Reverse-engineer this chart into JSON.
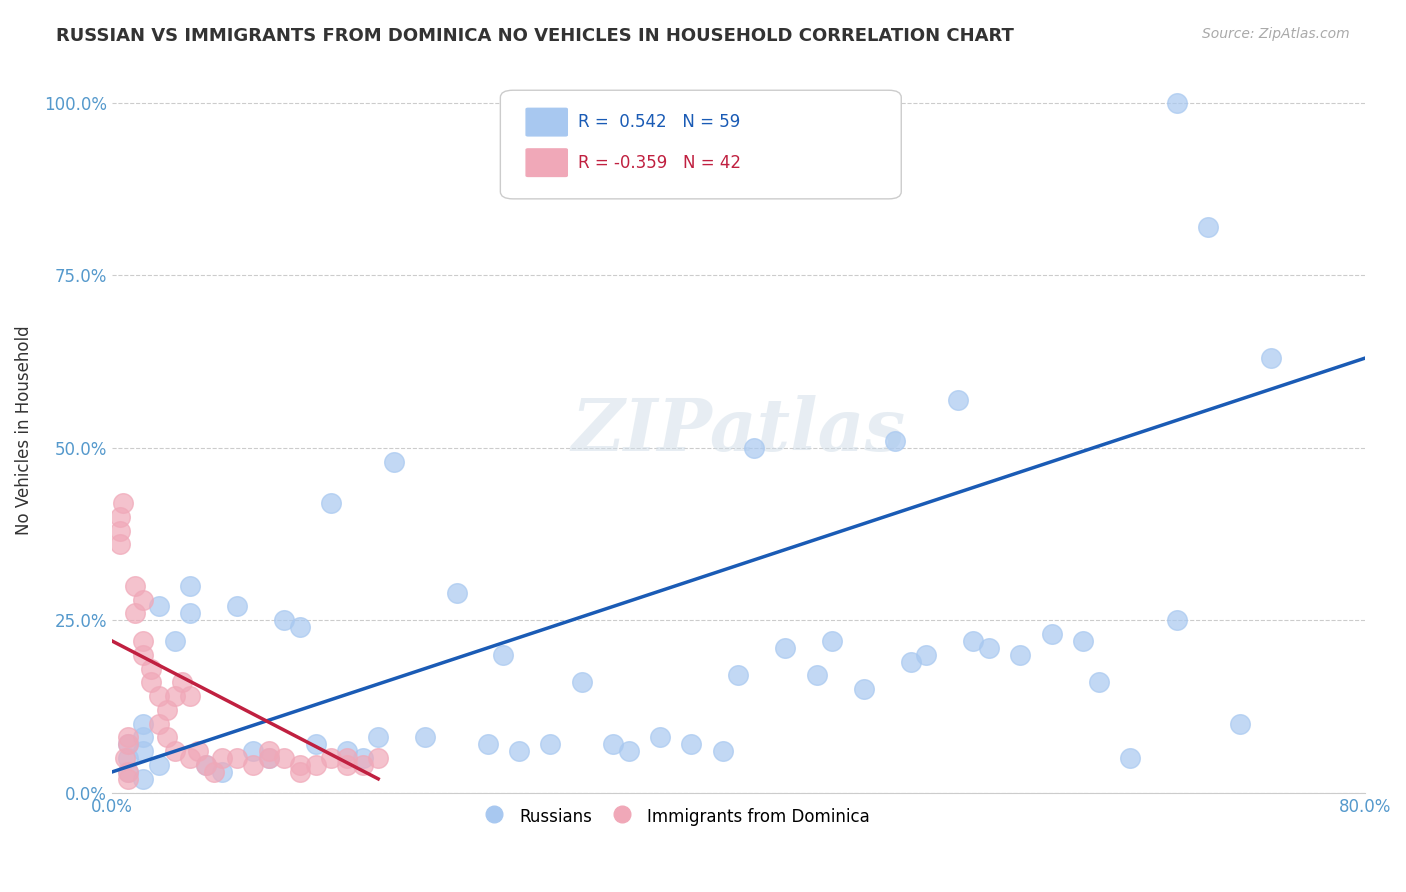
{
  "title": "RUSSIAN VS IMMIGRANTS FROM DOMINICA NO VEHICLES IN HOUSEHOLD CORRELATION CHART",
  "source": "Source: ZipAtlas.com",
  "ylabel": "No Vehicles in Household",
  "xlabel": "",
  "watermark": "ZIPatlas",
  "xlim": [
    0.0,
    0.8
  ],
  "ylim": [
    0.0,
    1.05
  ],
  "xticks": [
    0.0,
    0.1,
    0.2,
    0.3,
    0.4,
    0.5,
    0.6,
    0.7,
    0.8
  ],
  "xticklabels": [
    "0.0%",
    "",
    "",
    "",
    "",
    "",
    "",
    "",
    "80.0%"
  ],
  "yticks": [
    0.0,
    0.25,
    0.5,
    0.75,
    1.0
  ],
  "yticklabels": [
    "0.0%",
    "25.0%",
    "50.0%",
    "75.0%",
    "100.0%"
  ],
  "blue_R": 0.542,
  "blue_N": 59,
  "pink_R": -0.359,
  "pink_N": 42,
  "legend_labels": [
    "Russians",
    "Immigrants from Dominica"
  ],
  "blue_color": "#a8c8f0",
  "pink_color": "#f0a8b8",
  "blue_line_color": "#1a5bb5",
  "pink_line_color": "#c02040",
  "grid_color": "#cccccc",
  "title_color": "#333333",
  "axis_color": "#5599cc",
  "blue_scatter_x": [
    0.02,
    0.03,
    0.02,
    0.01,
    0.01,
    0.01,
    0.02,
    0.02,
    0.03,
    0.04,
    0.05,
    0.06,
    0.07,
    0.05,
    0.08,
    0.09,
    0.1,
    0.11,
    0.12,
    0.13,
    0.14,
    0.15,
    0.16,
    0.17,
    0.18,
    0.2,
    0.22,
    0.24,
    0.25,
    0.26,
    0.28,
    0.3,
    0.32,
    0.33,
    0.35,
    0.37,
    0.39,
    0.4,
    0.41,
    0.43,
    0.45,
    0.46,
    0.48,
    0.5,
    0.51,
    0.52,
    0.54,
    0.55,
    0.56,
    0.58,
    0.6,
    0.62,
    0.63,
    0.65,
    0.68,
    0.7,
    0.72,
    0.68,
    0.74
  ],
  "blue_scatter_y": [
    0.06,
    0.04,
    0.02,
    0.03,
    0.05,
    0.07,
    0.08,
    0.1,
    0.27,
    0.22,
    0.26,
    0.04,
    0.03,
    0.3,
    0.27,
    0.06,
    0.05,
    0.25,
    0.24,
    0.07,
    0.42,
    0.06,
    0.05,
    0.08,
    0.48,
    0.08,
    0.29,
    0.07,
    0.2,
    0.06,
    0.07,
    0.16,
    0.07,
    0.06,
    0.08,
    0.07,
    0.06,
    0.17,
    0.5,
    0.21,
    0.17,
    0.22,
    0.15,
    0.51,
    0.19,
    0.2,
    0.57,
    0.22,
    0.21,
    0.2,
    0.23,
    0.22,
    0.16,
    0.05,
    0.25,
    0.82,
    0.1,
    1.0,
    0.63
  ],
  "pink_scatter_x": [
    0.005,
    0.005,
    0.005,
    0.007,
    0.008,
    0.01,
    0.01,
    0.01,
    0.01,
    0.015,
    0.015,
    0.02,
    0.02,
    0.02,
    0.025,
    0.025,
    0.03,
    0.03,
    0.035,
    0.035,
    0.04,
    0.04,
    0.045,
    0.05,
    0.05,
    0.055,
    0.06,
    0.065,
    0.07,
    0.08,
    0.09,
    0.1,
    0.1,
    0.11,
    0.12,
    0.12,
    0.13,
    0.14,
    0.15,
    0.15,
    0.16,
    0.17
  ],
  "pink_scatter_y": [
    0.4,
    0.38,
    0.36,
    0.42,
    0.05,
    0.03,
    0.02,
    0.08,
    0.07,
    0.3,
    0.26,
    0.28,
    0.22,
    0.2,
    0.18,
    0.16,
    0.14,
    0.1,
    0.08,
    0.12,
    0.14,
    0.06,
    0.16,
    0.14,
    0.05,
    0.06,
    0.04,
    0.03,
    0.05,
    0.05,
    0.04,
    0.05,
    0.06,
    0.05,
    0.04,
    0.03,
    0.04,
    0.05,
    0.04,
    0.05,
    0.04,
    0.05
  ],
  "blue_line_x0": 0.0,
  "blue_line_y0": 0.03,
  "blue_line_x1": 0.8,
  "blue_line_y1": 0.63,
  "pink_line_x0": 0.0,
  "pink_line_y0": 0.22,
  "pink_line_x1": 0.17,
  "pink_line_y1": 0.02
}
